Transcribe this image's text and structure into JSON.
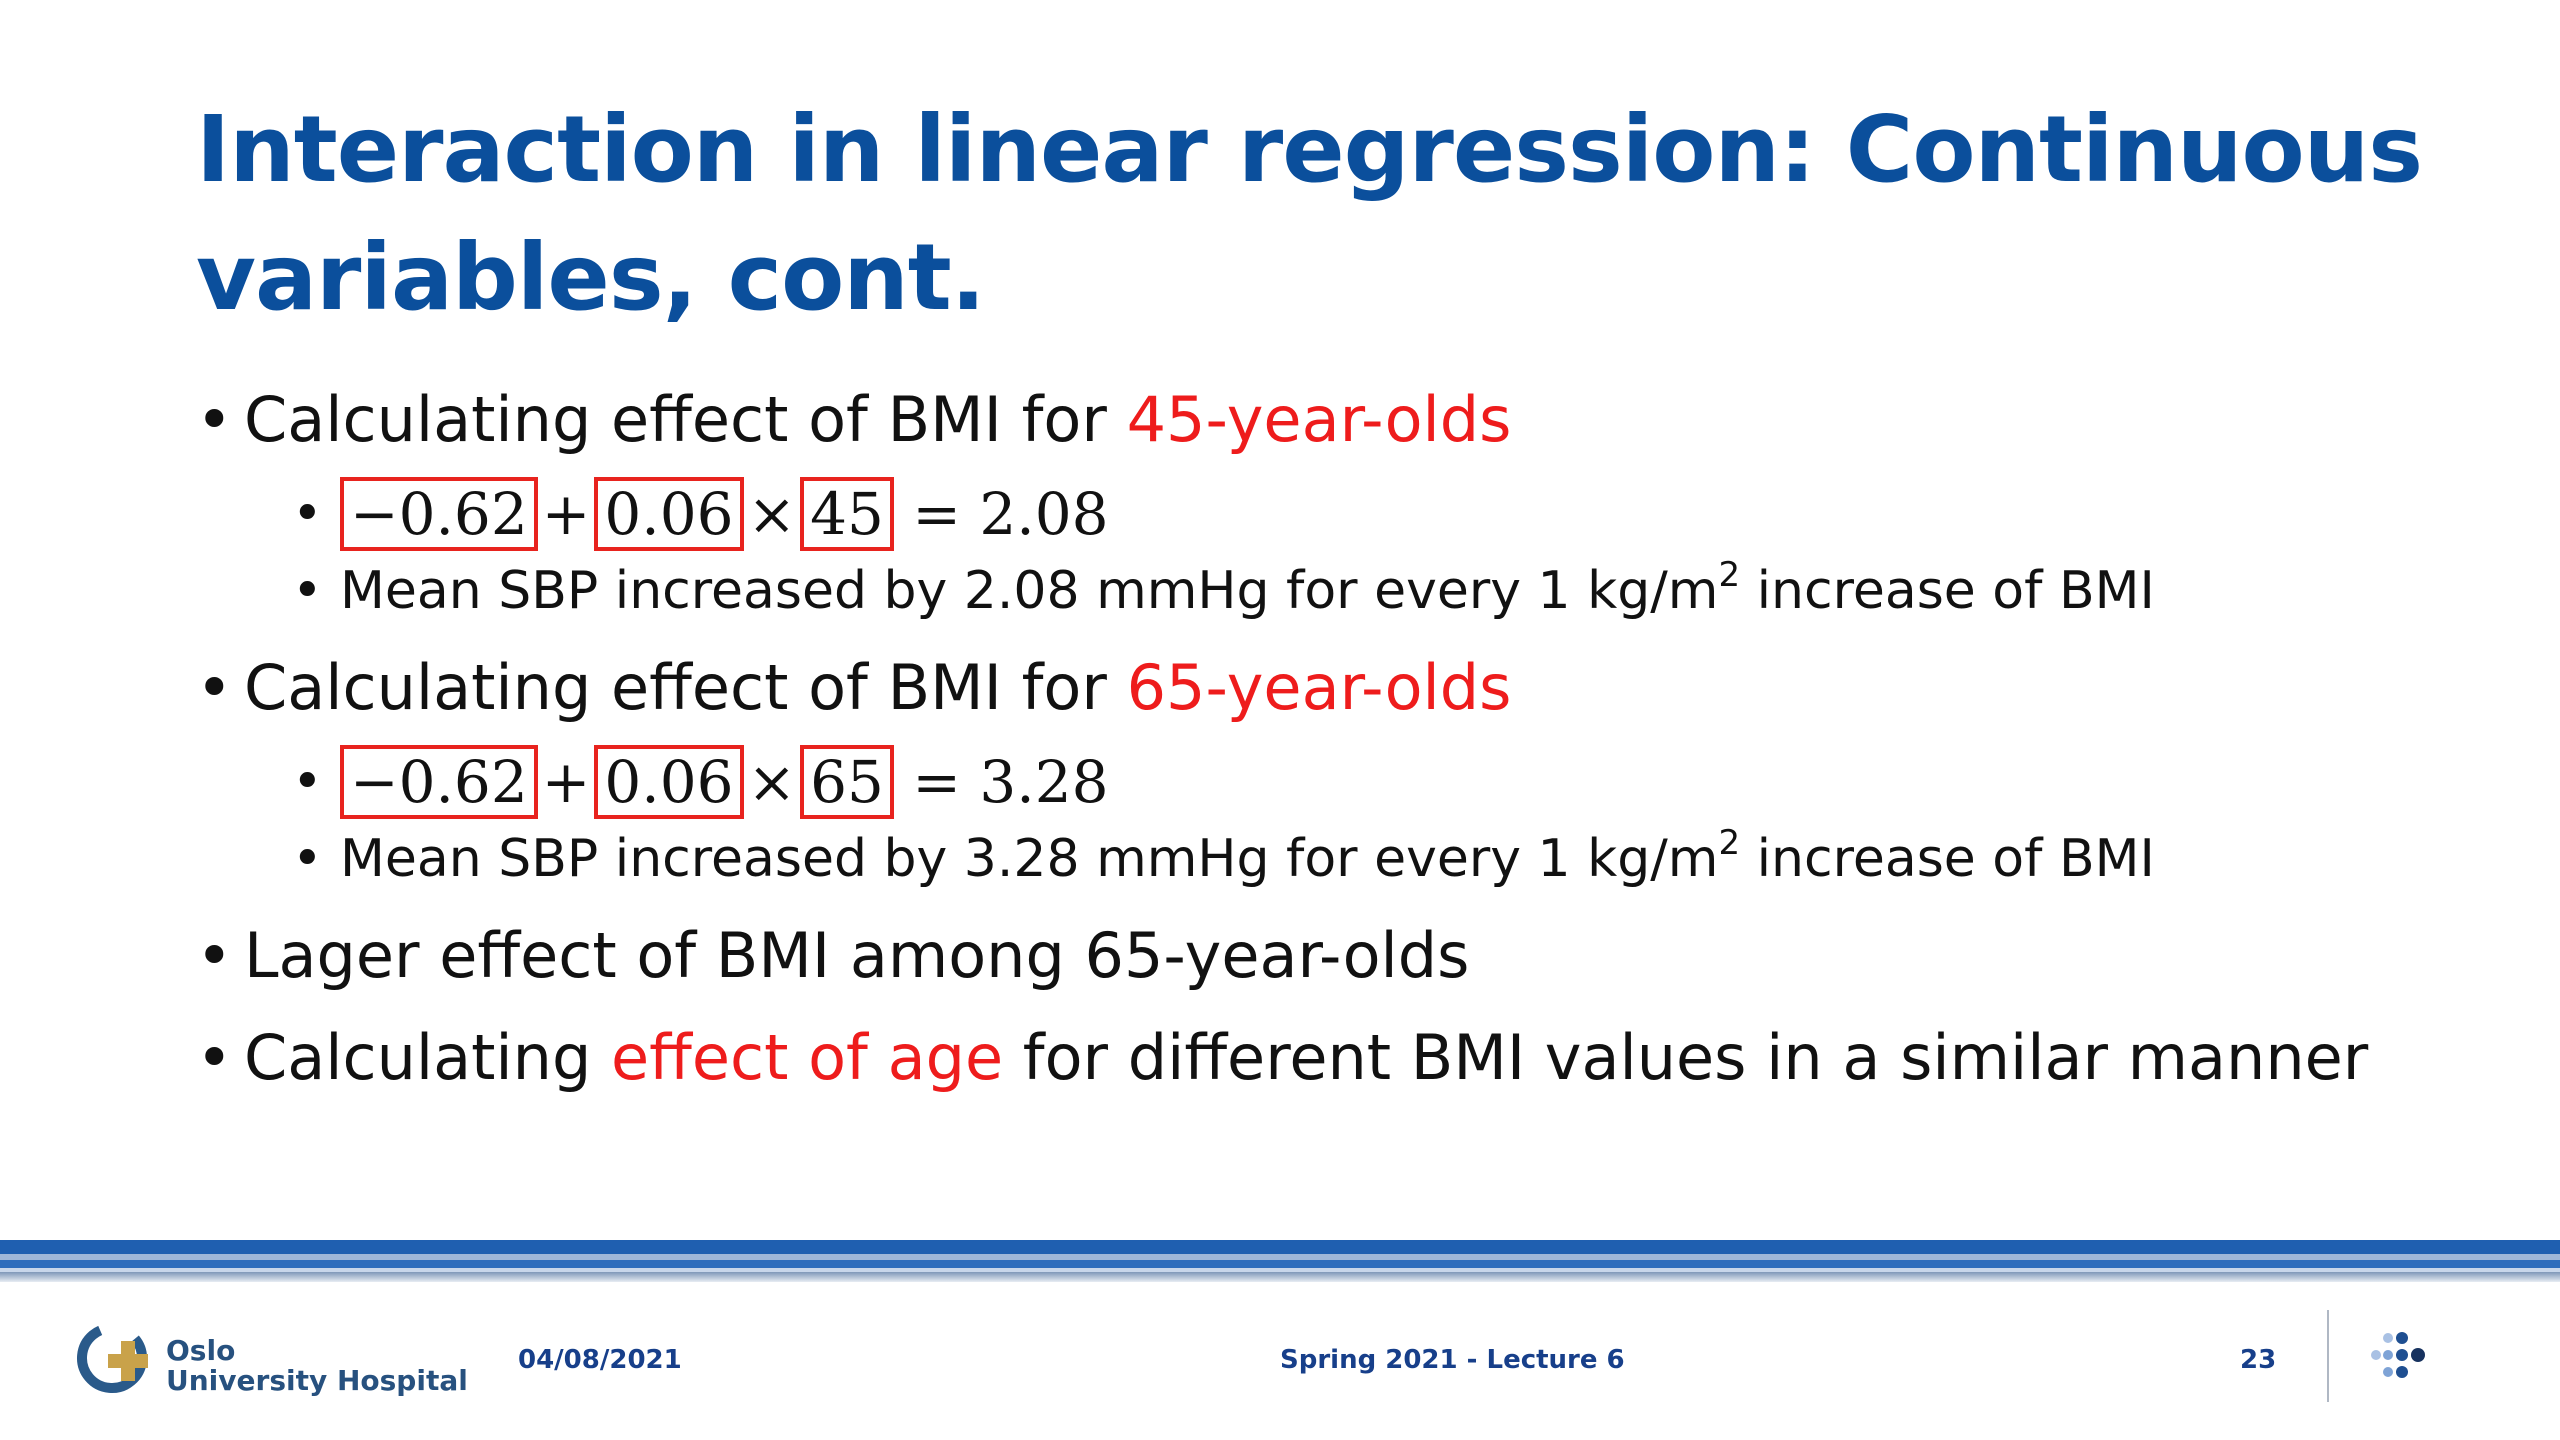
{
  "slide": {
    "title": "Interaction in linear regression: Continuous variables, cont.",
    "bullets": {
      "b1": {
        "prefix": "Calculating effect of BMI for ",
        "highlight": "45-year-olds",
        "formula": {
          "term1": "−0.62",
          "plus": "+",
          "term2": "0.06",
          "times": "×",
          "term3": "45",
          "result": "= 2.08"
        },
        "note": {
          "text": "Mean SBP increased by 2.08 mmHg for every 1 kg/m",
          "sup": "2",
          "tail": " increase of BMI"
        }
      },
      "b2": {
        "prefix": "Calculating effect of BMI for ",
        "highlight": "65-year-olds",
        "formula": {
          "term1": "−0.62",
          "plus": "+",
          "term2": "0.06",
          "times": "×",
          "term3": "65",
          "result": "= 3.28"
        },
        "note": {
          "text": "Mean SBP increased by 3.28 mmHg for every 1 kg/m",
          "sup": "2",
          "tail": " increase of BMI"
        }
      },
      "b3": {
        "text": "Lager effect of BMI among 65-year-olds"
      },
      "b4": {
        "prefix": "Calculating ",
        "highlight": "effect of age",
        "suffix": " for different BMI values in a similar manner"
      }
    },
    "bullet_char": "•"
  },
  "footer": {
    "logo_line1": "Oslo",
    "logo_line2": "University Hospital",
    "date": "04/08/2021",
    "lecture": "Spring 2021 - Lecture 6",
    "page": "23"
  },
  "colors": {
    "title": "#0b4f9c",
    "highlight": "#ee1c1c",
    "box_border": "#e8231e",
    "footer_text": "#173f8a",
    "band": "#1f5fb0"
  }
}
